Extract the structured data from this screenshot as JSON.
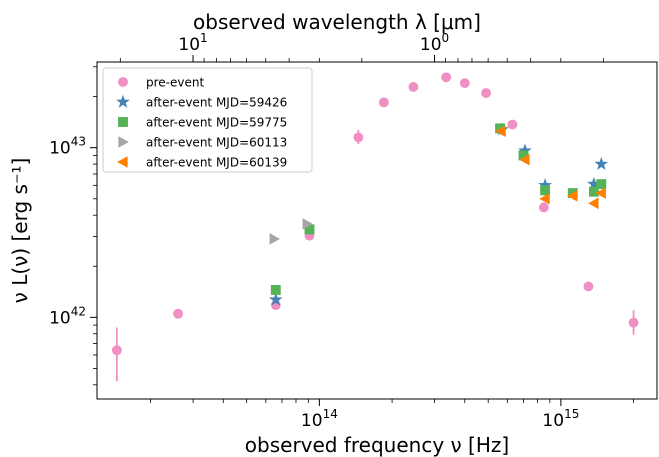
{
  "chart_data": {
    "type": "scatter",
    "xlabel": "observed frequency ν [Hz]",
    "ylabel": "ν L(ν) [erg s⁻¹]",
    "top_xlabel": "observed wavelength λ [μm]",
    "xscale": "log",
    "yscale": "log",
    "xlim": [
      12000000000000.0,
      2500000000000000.0
    ],
    "ylim": [
      3.3e+41,
      3.2e+43
    ],
    "x_ticks": [
      {
        "value": 100000000000000.0,
        "label": "10",
        "exp": "14"
      },
      {
        "value": 1000000000000000.0,
        "label": "10",
        "exp": "15"
      }
    ],
    "y_ticks": [
      {
        "value": 1e+42,
        "label": "10",
        "exp": "42"
      },
      {
        "value": 1e+43,
        "label": "10",
        "exp": "43"
      }
    ],
    "top_ticks": [
      {
        "value": 10,
        "label": "10",
        "exp": "1"
      },
      {
        "value": 1,
        "label": "10",
        "exp": "0"
      }
    ],
    "grid": false,
    "legend_position": "top-left",
    "series": [
      {
        "name": "pre-event",
        "marker": "circle",
        "color": "#f08fc3",
        "points": [
          {
            "x": 14500000000000.0,
            "y": 6.4e+41,
            "err_lo": 4.2e+41,
            "err_hi": 8.7e+41
          },
          {
            "x": 26000000000000.0,
            "y": 1.05e+42
          },
          {
            "x": 66000000000000.0,
            "y": 1.18e+42
          },
          {
            "x": 91000000000000.0,
            "y": 3.03e+42
          },
          {
            "x": 145000000000000.0,
            "y": 1.15e+43,
            "err_lo": 1.05e+43,
            "err_hi": 1.27e+43
          },
          {
            "x": 185000000000000.0,
            "y": 1.85e+43
          },
          {
            "x": 245000000000000.0,
            "y": 2.28e+43
          },
          {
            "x": 335000000000000.0,
            "y": 2.6e+43
          },
          {
            "x": 400000000000000.0,
            "y": 2.4e+43
          },
          {
            "x": 490000000000000.0,
            "y": 2.1e+43
          },
          {
            "x": 630000000000000.0,
            "y": 1.37e+43
          },
          {
            "x": 850000000000000.0,
            "y": 4.45e+42
          },
          {
            "x": 1300000000000000.0,
            "y": 1.52e+42
          },
          {
            "x": 2000000000000000.0,
            "y": 9.3e+41,
            "err_lo": 7.9e+41,
            "err_hi": 1.1e+42
          }
        ]
      },
      {
        "name": "after-event MJD=59426",
        "marker": "star",
        "color": "#4682b4",
        "points": [
          {
            "x": 66000000000000.0,
            "y": 1.27e+42
          },
          {
            "x": 570000000000000.0,
            "y": 1.28e+43
          },
          {
            "x": 710000000000000.0,
            "y": 9.6e+42
          },
          {
            "x": 860000000000000.0,
            "y": 6e+42
          },
          {
            "x": 1370000000000000.0,
            "y": 6.1e+42
          },
          {
            "x": 1470000000000000.0,
            "y": 8e+42
          }
        ]
      },
      {
        "name": "after-event MJD=59775",
        "marker": "square",
        "color": "#55b255",
        "points": [
          {
            "x": 66000000000000.0,
            "y": 1.45e+42
          },
          {
            "x": 91000000000000.0,
            "y": 3.3e+42
          },
          {
            "x": 560000000000000.0,
            "y": 1.3e+43
          },
          {
            "x": 700000000000000.0,
            "y": 9e+42
          },
          {
            "x": 860000000000000.0,
            "y": 5.6e+42
          },
          {
            "x": 1120000000000000.0,
            "y": 5.4e+42
          },
          {
            "x": 1370000000000000.0,
            "y": 5.5e+42
          },
          {
            "x": 1470000000000000.0,
            "y": 6.1e+42
          }
        ]
      },
      {
        "name": "after-event MJD=60113",
        "marker": "triangle-right",
        "color": "#a6a6a6",
        "points": [
          {
            "x": 65000000000000.0,
            "y": 2.9e+42
          },
          {
            "x": 89000000000000.0,
            "y": 3.55e+42
          }
        ]
      },
      {
        "name": "after-event MJD=60139",
        "marker": "triangle-left",
        "color": "#ff8000",
        "points": [
          {
            "x": 565000000000000.0,
            "y": 1.25e+43
          },
          {
            "x": 710000000000000.0,
            "y": 8.5e+42
          },
          {
            "x": 860000000000000.0,
            "y": 5e+42
          },
          {
            "x": 1120000000000000.0,
            "y": 5.2e+42
          },
          {
            "x": 1370000000000000.0,
            "y": 4.7e+42
          },
          {
            "x": 1470000000000000.0,
            "y": 5.4e+42
          }
        ]
      }
    ]
  }
}
